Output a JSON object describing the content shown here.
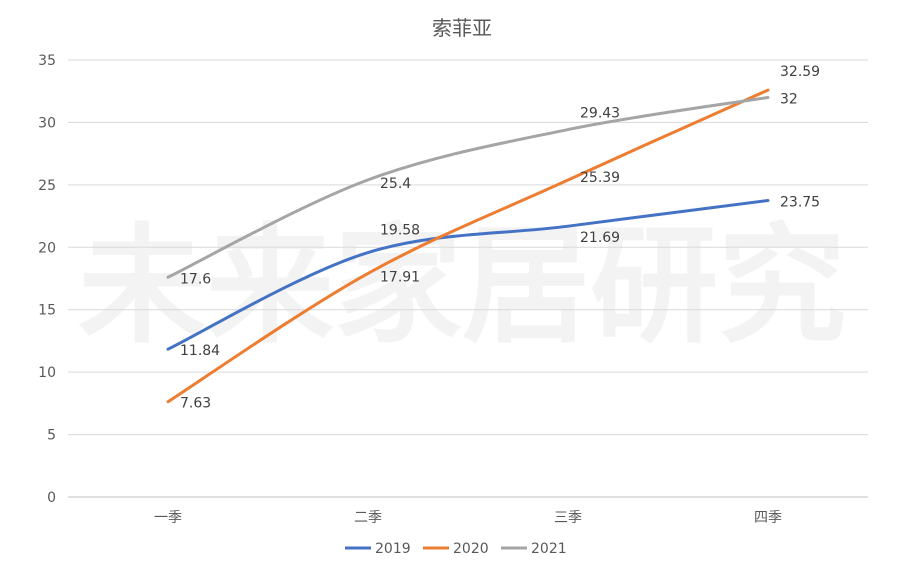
{
  "chart_data": {
    "type": "line",
    "title": "索菲亚",
    "watermark": "未来家居研究",
    "categories": [
      "一季",
      "二季",
      "三季",
      "四季"
    ],
    "ylim": [
      0,
      35
    ],
    "yticks": [
      0,
      5,
      10,
      15,
      20,
      25,
      30,
      35
    ],
    "grid": true,
    "smooth": true,
    "legend_position": "bottom",
    "series": [
      {
        "name": "2019",
        "color": "#4472c4",
        "values": [
          11.84,
          19.58,
          21.69,
          23.75
        ],
        "labels": [
          "11.84",
          "19.58",
          "21.69",
          "23.75"
        ]
      },
      {
        "name": "2020",
        "color": "#ed7d31",
        "values": [
          7.63,
          17.91,
          25.39,
          32.59
        ],
        "labels": [
          "7.63",
          "17.91",
          "25.39",
          "32.59"
        ]
      },
      {
        "name": "2021",
        "color": "#a5a5a5",
        "values": [
          17.6,
          25.4,
          29.43,
          32
        ],
        "labels": [
          "17.6",
          "25.4",
          "29.43",
          "32"
        ]
      }
    ]
  }
}
